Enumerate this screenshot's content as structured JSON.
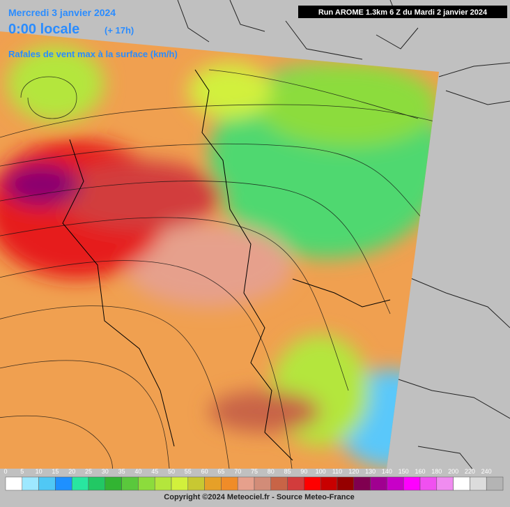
{
  "header": {
    "date": "Mercredi 3 janvier 2024",
    "time": "0:00 locale",
    "lead": "(+ 17h)",
    "subtitle": "Rafales de vent max à la surface (km/h)",
    "run": "Run AROME 1.3km 6 Z du Mardi 2 janvier 2024"
  },
  "legend": {
    "ticks": [
      0,
      5,
      10,
      15,
      20,
      25,
      30,
      35,
      40,
      45,
      50,
      55,
      60,
      65,
      70,
      75,
      80,
      85,
      90,
      100,
      110,
      120,
      130,
      140,
      150,
      160,
      180,
      200,
      220,
      240
    ],
    "colors": [
      "#ffffff",
      "#9ee8ff",
      "#50c8f5",
      "#1e90ff",
      "#28e6a0",
      "#22c864",
      "#32b432",
      "#5ac83c",
      "#8cdc3c",
      "#b4e63c",
      "#d2f03c",
      "#c8c832",
      "#e6a028",
      "#f08c28",
      "#e6a08c",
      "#d28c78",
      "#c86446",
      "#d23c3c",
      "#ff0000",
      "#c80000",
      "#960000",
      "#800050",
      "#a00090",
      "#c800c8",
      "#ff00ff",
      "#f050f0",
      "#f08cf0",
      "#ffffff",
      "#dcdcdc",
      "#b4b4b4"
    ]
  },
  "footer": "Copyright ©2024 Meteociel.fr - Source Meteo-France"
}
